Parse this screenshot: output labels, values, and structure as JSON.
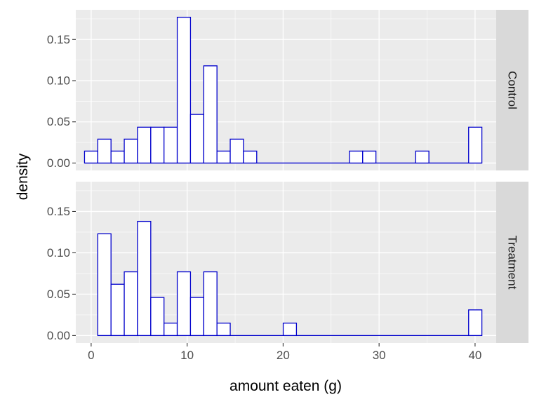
{
  "chart_data": {
    "type": "bar",
    "subtype": "faceted-histogram",
    "xlabel": "amount eaten (g)",
    "ylabel": "density",
    "xlim": [
      -1.6,
      42.2
    ],
    "ylim": [
      -0.009,
      0.186
    ],
    "x_ticks": [
      0,
      10,
      20,
      30,
      40
    ],
    "x_tick_labels": [
      "0",
      "10",
      "20",
      "30",
      "40"
    ],
    "y_ticks": [
      0.0,
      0.05,
      0.1,
      0.15
    ],
    "y_tick_labels": [
      "0.00",
      "0.05",
      "0.10",
      "0.15"
    ],
    "grid": true,
    "bar_fill": "#ffffff",
    "bar_outline": "#0000cc",
    "panel_background": "#ebebeb",
    "strip_background": "#d9d9d9",
    "bin_width": 1.38,
    "bins_start": -0.69,
    "facets": [
      {
        "name": "Control",
        "values": [
          0.0145,
          0.029,
          0.0145,
          0.029,
          0.0435,
          0.0435,
          0.0435,
          0.177,
          0.059,
          0.118,
          0.0145,
          0.029,
          0.0145,
          0,
          0,
          0,
          0,
          0,
          0,
          0,
          0.0145,
          0.0145,
          0,
          0,
          0,
          0.0145,
          0,
          0,
          0,
          0.0435
        ]
      },
      {
        "name": "Treatment",
        "values": [
          0,
          0.123,
          0.062,
          0.077,
          0.138,
          0.046,
          0.015,
          0.077,
          0.046,
          0.077,
          0.015,
          0,
          0,
          0,
          0,
          0.015,
          0,
          0,
          0,
          0,
          0,
          0,
          0,
          0,
          0,
          0,
          0,
          0,
          0,
          0.031
        ]
      }
    ]
  }
}
